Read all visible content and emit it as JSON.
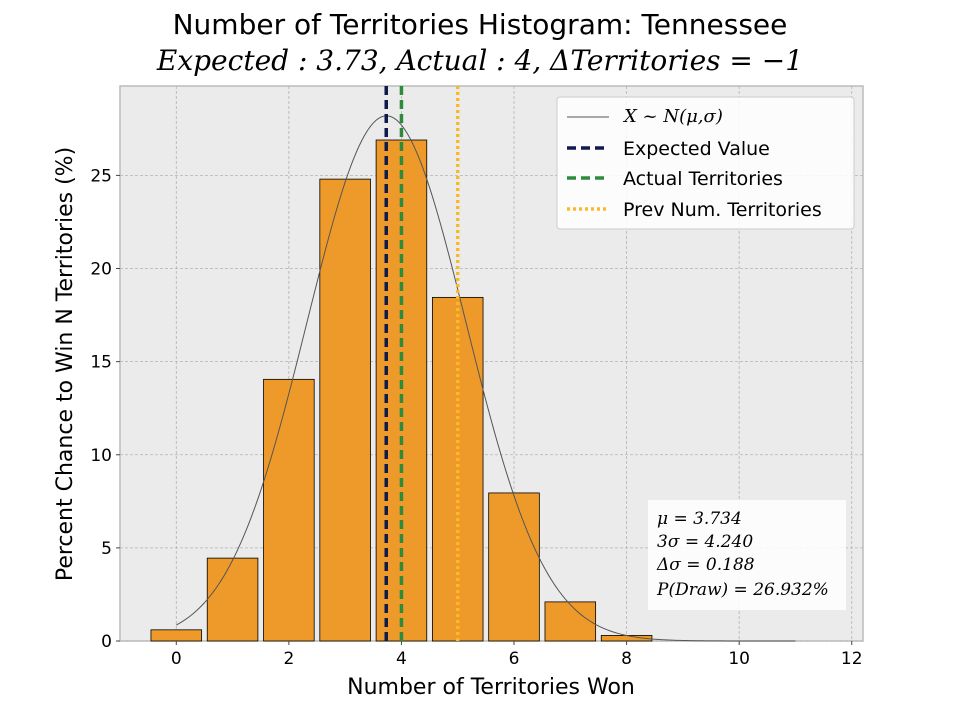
{
  "title": "Number of Territories Histogram: Tennessee",
  "subtitle": "Expected : 3.73, Actual : 4, ΔTerritories = −1",
  "chart_data": {
    "type": "bar",
    "xlabel": "Number of Territories Won",
    "ylabel": "Percent Chance to Win N Territories (%)",
    "xlim": [
      -1.0,
      12.2
    ],
    "ylim": [
      0,
      29.8
    ],
    "xticks": [
      0,
      2,
      4,
      6,
      8,
      10,
      12
    ],
    "yticks": [
      0,
      5,
      10,
      15,
      20,
      25
    ],
    "grid": true,
    "categories": [
      0,
      1,
      2,
      3,
      4,
      5,
      6,
      7,
      8
    ],
    "values": [
      0.6,
      4.45,
      14.05,
      24.8,
      26.9,
      18.45,
      7.95,
      2.1,
      0.3
    ],
    "bar_color": "#ee9a2b",
    "normal_curve": {
      "label": "X ~ N(μ,σ)",
      "mu": 3.734,
      "sigma": 1.413,
      "peak": 28.2,
      "x_range": [
        0,
        11
      ],
      "color": "#555555"
    },
    "vlines": [
      {
        "label": "Expected Value",
        "x": 3.73,
        "color": "#0f1b4c",
        "style": "dashed"
      },
      {
        "label": "Actual Territories",
        "x": 4,
        "color": "#2e8b3c",
        "style": "dashed"
      },
      {
        "label": "Prev Num. Territories",
        "x": 5,
        "color": "#fbb829",
        "style": "dotted"
      }
    ],
    "legend_position": "top-right",
    "stats": [
      "μ = 3.734",
      "3σ = 4.240",
      "Δσ = 0.188",
      "P(Draw) = 26.932%"
    ]
  }
}
